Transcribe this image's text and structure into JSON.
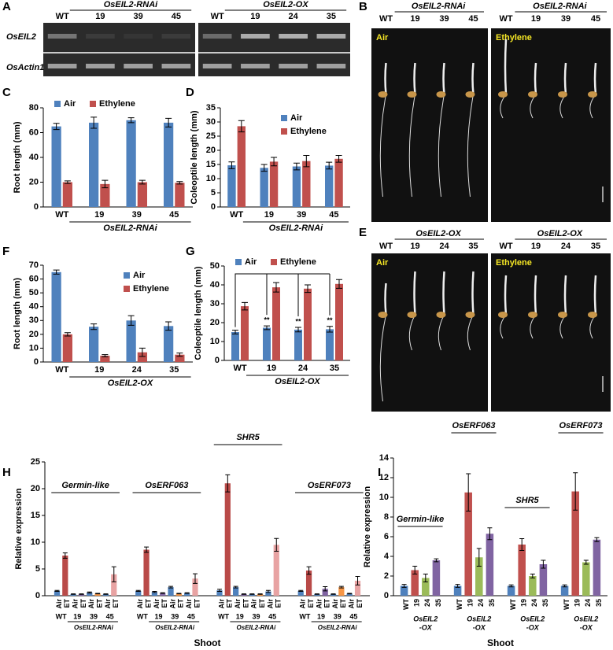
{
  "gel": {
    "panel": "A",
    "group_labels": [
      "OsEIL2-RNAi",
      "OsEIL2-OX"
    ],
    "lanes": [
      [
        "WT",
        "19",
        "39",
        "45"
      ],
      [
        "WT",
        "19",
        "24",
        "35"
      ]
    ],
    "rows": [
      "OsEIL2",
      "OsActin1"
    ]
  },
  "photos": [
    {
      "panel": "B",
      "group_label": "OsEIL2-RNAi",
      "lanes": [
        "WT",
        "19",
        "39",
        "45"
      ],
      "treatments": [
        "Air",
        "Ethylene"
      ]
    },
    {
      "panel": "E",
      "group_label": "OsEIL2-OX",
      "lanes": [
        "WT",
        "19",
        "24",
        "35"
      ],
      "treatments": [
        "Air",
        "Ethylene"
      ]
    }
  ],
  "chart_data": [
    {
      "panel": "C",
      "type": "bar",
      "y_label": "Root length (mm)",
      "categories": [
        "WT",
        "19",
        "39",
        "45"
      ],
      "group_label": "OsEIL2-RNAi",
      "series": [
        {
          "name": "Air",
          "color": "#4f81bd",
          "values": [
            65,
            68,
            70,
            68
          ],
          "errors": [
            2.5,
            4.5,
            2,
            3.5
          ]
        },
        {
          "name": "Ethylene",
          "color": "#c0504d",
          "values": [
            20,
            18.5,
            20,
            19.5
          ],
          "errors": [
            1,
            3,
            1.5,
            1
          ]
        }
      ],
      "ylim": [
        0,
        80
      ],
      "yticks": [
        0,
        20,
        40,
        60,
        80
      ],
      "legend": "top-left"
    },
    {
      "panel": "D",
      "type": "bar",
      "y_label": "Coleoptile length (mm)",
      "categories": [
        "WT",
        "19",
        "39",
        "45"
      ],
      "group_label": "OsEIL2-RNAi",
      "series": [
        {
          "name": "Air",
          "color": "#4f81bd",
          "values": [
            14.7,
            13.8,
            14.3,
            14.6
          ],
          "errors": [
            1.2,
            1.2,
            1.2,
            1.2
          ]
        },
        {
          "name": "Ethylene",
          "color": "#c0504d",
          "values": [
            28.5,
            16,
            16.2,
            17
          ],
          "errors": [
            2,
            1.5,
            2,
            1.2
          ]
        }
      ],
      "ylim": [
        0,
        35
      ],
      "yticks": [
        0,
        5,
        10,
        15,
        20,
        25,
        30,
        35
      ],
      "legend": "top-right"
    },
    {
      "panel": "F",
      "type": "bar",
      "y_label": "Root length (mm)",
      "categories": [
        "WT",
        "19",
        "24",
        "35"
      ],
      "group_label": "OsEIL2-OX",
      "series": [
        {
          "name": "Air",
          "color": "#4f81bd",
          "values": [
            65,
            25.5,
            30,
            26
          ],
          "errors": [
            1.5,
            2,
            3.5,
            3
          ]
        },
        {
          "name": "Ethylene",
          "color": "#c0504d",
          "values": [
            20,
            4.5,
            7,
            5.3
          ],
          "errors": [
            1.2,
            0.8,
            3,
            1.2
          ]
        }
      ],
      "ylim": [
        0,
        70
      ],
      "yticks": [
        0,
        10,
        20,
        30,
        40,
        50,
        60,
        70
      ],
      "legend": "top-right"
    },
    {
      "panel": "G",
      "type": "bar",
      "y_label": "Coleoptile length (mm)",
      "categories": [
        "WT",
        "19",
        "24",
        "35"
      ],
      "group_label": "OsEIL2-OX",
      "annotations": [
        null,
        "**",
        "**",
        "**"
      ],
      "series": [
        {
          "name": "Air",
          "color": "#4f81bd",
          "values": [
            15,
            17.3,
            16.3,
            16.5
          ],
          "errors": [
            1,
            1,
            1.2,
            1.5
          ]
        },
        {
          "name": "Ethylene",
          "color": "#c0504d",
          "values": [
            28.7,
            38.7,
            38,
            40.5
          ],
          "errors": [
            2,
            2.5,
            2,
            2.3
          ]
        }
      ],
      "ylim": [
        0,
        50
      ],
      "yticks": [
        0,
        10,
        20,
        30,
        40,
        50
      ],
      "legend": "top-left"
    },
    {
      "panel": "H",
      "type": "grouped_bar",
      "y_label": "Relative expression",
      "x_label": "Shoot",
      "conditions": [
        "Air",
        "ET",
        "Air",
        "ET",
        "Air",
        "ET",
        "Air",
        "ET"
      ],
      "categories": [
        "WT",
        "19",
        "39",
        "45"
      ],
      "group_label": "OsEIL2-RNAi",
      "colors": [
        "#4f81bd",
        "#b94a48",
        "#4f81bd",
        "#8064a2",
        "#4f81bd",
        "#f79646",
        "#4f81bd",
        "#e8a3a3"
      ],
      "groups": [
        {
          "name": "Germin-like",
          "values": [
            0.9,
            7.5,
            0.3,
            0.3,
            0.6,
            0.4,
            0.3,
            4.0
          ],
          "errors": [
            0.1,
            0.5,
            0.05,
            0.05,
            0.1,
            0.05,
            0.05,
            1.4
          ]
        },
        {
          "name": "OsERF063",
          "values": [
            0.9,
            8.6,
            0.7,
            0.5,
            1.6,
            0.4,
            0.5,
            3.2
          ],
          "errors": [
            0.1,
            0.5,
            0.1,
            0.05,
            0.15,
            0.05,
            0.05,
            0.9
          ]
        },
        {
          "name": "SHR5",
          "values": [
            1.0,
            21.0,
            1.6,
            0.3,
            0.3,
            0.3,
            0.8,
            9.5
          ],
          "errors": [
            0.2,
            1.6,
            0.15,
            0.05,
            0.05,
            0.05,
            0.2,
            1.2
          ]
        },
        {
          "name": "OsERF073",
          "values": [
            0.9,
            4.7,
            0.3,
            1.3,
            0.3,
            1.6,
            0.4,
            2.8
          ],
          "errors": [
            0.1,
            0.7,
            0.05,
            0.4,
            0.05,
            0.15,
            0.05,
            0.8
          ]
        }
      ],
      "ylim": [
        0,
        25
      ],
      "yticks": [
        0,
        5,
        10,
        15,
        20,
        25
      ]
    },
    {
      "panel": "I",
      "type": "grouped_bar",
      "y_label": "Relative expression",
      "x_label": "Shoot",
      "categories": [
        "WT",
        "19",
        "24",
        "35"
      ],
      "group_label": [
        "OsEIL2",
        "-OX"
      ],
      "colors": [
        "#4f81bd",
        "#c0504d",
        "#9bbb59",
        "#8064a2"
      ],
      "groups": [
        {
          "name": "Germin-like",
          "values": [
            1.0,
            2.6,
            1.8,
            3.6
          ],
          "errors": [
            0.15,
            0.4,
            0.4,
            0.15
          ]
        },
        {
          "name": "OsERF063",
          "values": [
            1.0,
            10.5,
            3.9,
            6.3
          ],
          "errors": [
            0.15,
            1.9,
            0.9,
            0.6
          ]
        },
        {
          "name": "SHR5",
          "values": [
            1.0,
            5.2,
            2.0,
            3.2
          ],
          "errors": [
            0.1,
            0.6,
            0.2,
            0.4
          ]
        },
        {
          "name": "OsERF073",
          "values": [
            1.0,
            10.6,
            3.4,
            5.7
          ],
          "errors": [
            0.1,
            1.9,
            0.2,
            0.2
          ]
        }
      ],
      "ylim": [
        0,
        14
      ],
      "yticks": [
        0,
        2,
        4,
        6,
        8,
        10,
        12,
        14
      ]
    }
  ]
}
